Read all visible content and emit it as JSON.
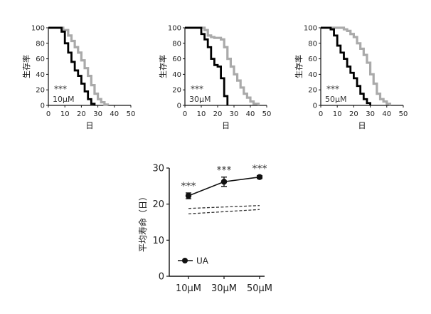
{
  "chart_data": [
    {
      "type": "line",
      "step": true,
      "ylabel": "生存率",
      "xlabel": "日",
      "xlim": [
        0,
        50
      ],
      "ylim": [
        0,
        100
      ],
      "xticks": [
        0,
        10,
        20,
        30,
        40,
        50
      ],
      "yticks": [
        0,
        20,
        40,
        60,
        80,
        100
      ],
      "annotations": [
        "***",
        "10μM"
      ],
      "series": [
        {
          "color": "#aaaaaa",
          "x": [
            0,
            6,
            9,
            12,
            14,
            16,
            18,
            20,
            22,
            24,
            26,
            28,
            30,
            32,
            34,
            36
          ],
          "y": [
            100,
            100,
            97,
            90,
            83,
            75,
            68,
            58,
            48,
            38,
            26,
            15,
            8,
            4,
            1,
            0
          ]
        },
        {
          "color": "#000000",
          "x": [
            0,
            5,
            8,
            10,
            12,
            14,
            16,
            18,
            20,
            22,
            24,
            26,
            28
          ],
          "y": [
            100,
            100,
            95,
            80,
            68,
            56,
            45,
            38,
            28,
            18,
            8,
            2,
            0
          ]
        }
      ]
    },
    {
      "type": "line",
      "step": true,
      "ylabel": "生存率",
      "xlabel": "日",
      "xlim": [
        0,
        50
      ],
      "ylim": [
        0,
        100
      ],
      "xticks": [
        0,
        10,
        20,
        30,
        40,
        50
      ],
      "yticks": [
        0,
        20,
        40,
        60,
        80,
        100
      ],
      "annotations": [
        "***",
        "30μM"
      ],
      "series": [
        {
          "color": "#aaaaaa",
          "x": [
            0,
            10,
            12,
            14,
            16,
            18,
            22,
            24,
            26,
            28,
            30,
            32,
            34,
            36,
            38,
            40,
            42,
            45
          ],
          "y": [
            100,
            100,
            97,
            90,
            88,
            87,
            85,
            75,
            60,
            50,
            40,
            32,
            23,
            15,
            10,
            5,
            2,
            0
          ]
        },
        {
          "color": "#000000",
          "x": [
            0,
            7,
            10,
            12,
            14,
            16,
            18,
            20,
            22,
            24,
            26
          ],
          "y": [
            100,
            100,
            92,
            85,
            75,
            60,
            52,
            50,
            35,
            12,
            0
          ]
        }
      ]
    },
    {
      "type": "line",
      "step": true,
      "ylabel": "生存率",
      "xlabel": "日",
      "xlim": [
        0,
        50
      ],
      "ylim": [
        0,
        100
      ],
      "xticks": [
        0,
        10,
        20,
        30,
        40,
        50
      ],
      "yticks": [
        0,
        20,
        40,
        60,
        80,
        100
      ],
      "annotations": [
        "***",
        "50μM"
      ],
      "series": [
        {
          "color": "#aaaaaa",
          "x": [
            0,
            12,
            14,
            16,
            18,
            20,
            22,
            24,
            26,
            28,
            30,
            32,
            34,
            36,
            38,
            40,
            42
          ],
          "y": [
            100,
            100,
            98,
            96,
            92,
            88,
            80,
            73,
            65,
            55,
            40,
            28,
            15,
            8,
            5,
            2,
            0
          ]
        },
        {
          "color": "#000000",
          "x": [
            0,
            4,
            6,
            8,
            10,
            12,
            14,
            16,
            18,
            20,
            22,
            24,
            26,
            28,
            30
          ],
          "y": [
            100,
            100,
            98,
            90,
            77,
            68,
            60,
            50,
            42,
            35,
            25,
            15,
            8,
            3,
            0
          ]
        }
      ]
    },
    {
      "type": "line",
      "ylabel": "平均寿命（日）",
      "xlabel": "",
      "categories": [
        "10μM",
        "30μM",
        "50μM"
      ],
      "ylim": [
        0,
        30
      ],
      "yticks": [
        0,
        10,
        20,
        30
      ],
      "legend": "bottom-left",
      "significance": [
        "***",
        "***",
        "***"
      ],
      "series": [
        {
          "name": "UA",
          "values": [
            22.3,
            26.2,
            27.5
          ],
          "error": [
            0.8,
            1.3,
            0.4
          ],
          "color": "#111111",
          "marker": "circle",
          "dash": false
        },
        {
          "values": [
            18.8,
            19.2,
            19.6
          ],
          "color": "#333333",
          "dash": true
        },
        {
          "values": [
            17.3,
            17.9,
            18.5
          ],
          "color": "#333333",
          "dash": true
        }
      ]
    }
  ]
}
